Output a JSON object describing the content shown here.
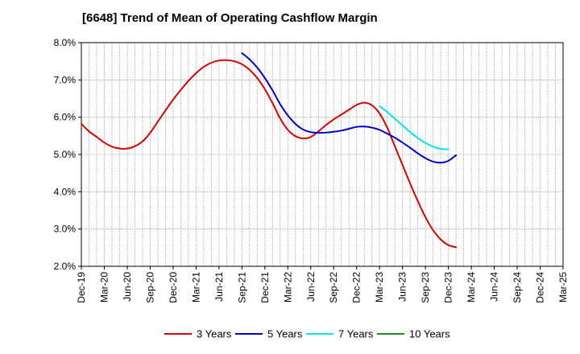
{
  "chart_data": {
    "type": "line",
    "title": "[6648]  Trend of Mean of Operating Cashflow Margin",
    "xlabel": "",
    "ylabel": "",
    "grid": true,
    "legend_position": "bottom",
    "x_ticks": [
      "Dec-19",
      "Mar-20",
      "Jun-20",
      "Sep-20",
      "Dec-20",
      "Mar-21",
      "Jun-21",
      "Sep-21",
      "Dec-21",
      "Mar-22",
      "Jun-22",
      "Sep-22",
      "Dec-22",
      "Mar-23",
      "Jun-23",
      "Sep-23",
      "Dec-23",
      "Mar-24",
      "Jun-24",
      "Sep-24",
      "Dec-24",
      "Mar-25"
    ],
    "y_ticks": [
      "2.0%",
      "3.0%",
      "4.0%",
      "5.0%",
      "6.0%",
      "7.0%",
      "8.0%"
    ],
    "ylim": [
      2.0,
      8.0
    ],
    "x_range_months": [
      0,
      63
    ],
    "series": [
      {
        "name": "3 Years",
        "color": "#dd0000",
        "points": [
          [
            0,
            5.82
          ],
          [
            1,
            5.62
          ],
          [
            2,
            5.47
          ],
          [
            3,
            5.32
          ],
          [
            4,
            5.21
          ],
          [
            5,
            5.16
          ],
          [
            6,
            5.16
          ],
          [
            7,
            5.22
          ],
          [
            8,
            5.35
          ],
          [
            9,
            5.58
          ],
          [
            10,
            5.88
          ],
          [
            11,
            6.18
          ],
          [
            12,
            6.47
          ],
          [
            13,
            6.73
          ],
          [
            14,
            6.97
          ],
          [
            15,
            7.18
          ],
          [
            16,
            7.35
          ],
          [
            17,
            7.46
          ],
          [
            18,
            7.52
          ],
          [
            19,
            7.53
          ],
          [
            20,
            7.5
          ],
          [
            21,
            7.42
          ],
          [
            22,
            7.27
          ],
          [
            23,
            7.05
          ],
          [
            24,
            6.75
          ],
          [
            25,
            6.38
          ],
          [
            26,
            5.97
          ],
          [
            27,
            5.66
          ],
          [
            28,
            5.49
          ],
          [
            29,
            5.43
          ],
          [
            30,
            5.47
          ],
          [
            31,
            5.62
          ],
          [
            32,
            5.79
          ],
          [
            33,
            5.94
          ],
          [
            34,
            6.07
          ],
          [
            35,
            6.2
          ],
          [
            36,
            6.33
          ],
          [
            37,
            6.39
          ],
          [
            38,
            6.32
          ],
          [
            39,
            6.1
          ],
          [
            40,
            5.72
          ],
          [
            41,
            5.22
          ],
          [
            42,
            4.72
          ],
          [
            43,
            4.22
          ],
          [
            44,
            3.75
          ],
          [
            45,
            3.32
          ],
          [
            46,
            2.97
          ],
          [
            47,
            2.72
          ],
          [
            48,
            2.57
          ],
          [
            49,
            2.51
          ]
        ]
      },
      {
        "name": "5 Years",
        "color": "#0000cc",
        "points": [
          [
            21,
            7.72
          ],
          [
            22,
            7.55
          ],
          [
            23,
            7.33
          ],
          [
            24,
            7.05
          ],
          [
            25,
            6.72
          ],
          [
            26,
            6.35
          ],
          [
            27,
            6.05
          ],
          [
            28,
            5.82
          ],
          [
            29,
            5.67
          ],
          [
            30,
            5.6
          ],
          [
            31,
            5.58
          ],
          [
            32,
            5.59
          ],
          [
            33,
            5.61
          ],
          [
            34,
            5.64
          ],
          [
            35,
            5.69
          ],
          [
            36,
            5.74
          ],
          [
            37,
            5.75
          ],
          [
            38,
            5.72
          ],
          [
            39,
            5.66
          ],
          [
            40,
            5.56
          ],
          [
            41,
            5.45
          ],
          [
            42,
            5.32
          ],
          [
            43,
            5.18
          ],
          [
            44,
            5.03
          ],
          [
            45,
            4.9
          ],
          [
            46,
            4.81
          ],
          [
            47,
            4.78
          ],
          [
            48,
            4.83
          ],
          [
            49,
            4.98
          ]
        ]
      },
      {
        "name": "7 Years",
        "color": "#00e5ee",
        "points": [
          [
            39,
            6.3
          ],
          [
            40,
            6.14
          ],
          [
            41,
            5.96
          ],
          [
            42,
            5.78
          ],
          [
            43,
            5.6
          ],
          [
            44,
            5.44
          ],
          [
            45,
            5.31
          ],
          [
            46,
            5.21
          ],
          [
            47,
            5.15
          ],
          [
            48,
            5.14
          ]
        ]
      },
      {
        "name": "10 Years",
        "color": "#228b22",
        "points": []
      }
    ]
  }
}
